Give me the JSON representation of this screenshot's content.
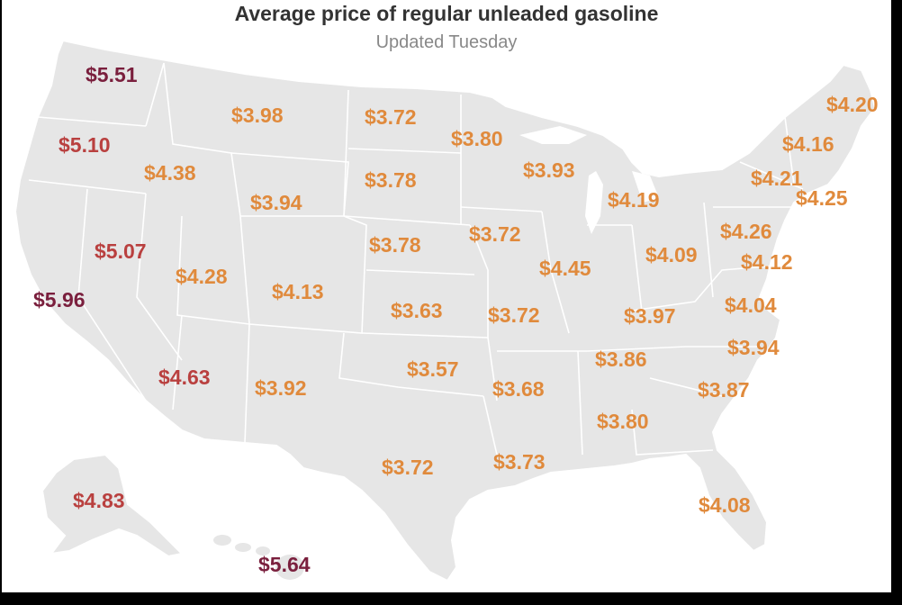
{
  "header": {
    "title": "Average price of regular unleaded gasoline",
    "subtitle": "Updated Tuesday"
  },
  "colors": {
    "background": "#ffffff",
    "land": "#e6e6e6",
    "border": "#ffffff",
    "tier_high": "#7a1f3d",
    "tier_mid": "#b9403f",
    "tier_low": "#e08a3c"
  },
  "states": [
    {
      "code": "WA",
      "price": "$5.51",
      "tier": "high"
    },
    {
      "code": "OR",
      "price": "$5.10",
      "tier": "mid"
    },
    {
      "code": "CA",
      "price": "$5.96",
      "tier": "high"
    },
    {
      "code": "NV",
      "price": "$5.07",
      "tier": "mid"
    },
    {
      "code": "ID",
      "price": "$4.38",
      "tier": "low"
    },
    {
      "code": "MT",
      "price": "$3.98",
      "tier": "low"
    },
    {
      "code": "WY",
      "price": "$3.94",
      "tier": "low"
    },
    {
      "code": "UT",
      "price": "$4.28",
      "tier": "low"
    },
    {
      "code": "CO",
      "price": "$4.13",
      "tier": "low"
    },
    {
      "code": "AZ",
      "price": "$4.63",
      "tier": "mid"
    },
    {
      "code": "NM",
      "price": "$3.92",
      "tier": "low"
    },
    {
      "code": "ND",
      "price": "$3.72",
      "tier": "low"
    },
    {
      "code": "SD",
      "price": "$3.78",
      "tier": "low"
    },
    {
      "code": "NE",
      "price": "$3.78",
      "tier": "low"
    },
    {
      "code": "KS",
      "price": "$3.63",
      "tier": "low"
    },
    {
      "code": "OK",
      "price": "$3.57",
      "tier": "low"
    },
    {
      "code": "TX",
      "price": "$3.72",
      "tier": "low"
    },
    {
      "code": "MN",
      "price": "$3.80",
      "tier": "low"
    },
    {
      "code": "IA",
      "price": "$3.72",
      "tier": "low"
    },
    {
      "code": "MO",
      "price": "$3.72",
      "tier": "low"
    },
    {
      "code": "AR",
      "price": "$3.68",
      "tier": "low"
    },
    {
      "code": "LA",
      "price": "$3.73",
      "tier": "low"
    },
    {
      "code": "WI",
      "price": "$3.93",
      "tier": "low"
    },
    {
      "code": "IL",
      "price": "$4.45",
      "tier": "low"
    },
    {
      "code": "MI",
      "price": "$4.19",
      "tier": "low"
    },
    {
      "code": "IN",
      "price": "$4.09",
      "tier": "low"
    },
    {
      "code": "KY",
      "price": "$3.97",
      "tier": "low"
    },
    {
      "code": "TN",
      "price": "$3.86",
      "tier": "low"
    },
    {
      "code": "MS",
      "price": "$3.80",
      "tier": "low"
    },
    {
      "code": "PA",
      "price": "$4.26",
      "tier": "low"
    },
    {
      "code": "NJ",
      "price": "$4.12",
      "tier": "low"
    },
    {
      "code": "VA",
      "price": "$4.04",
      "tier": "low"
    },
    {
      "code": "NC",
      "price": "$3.94",
      "tier": "low"
    },
    {
      "code": "SC",
      "price": "$3.87",
      "tier": "low"
    },
    {
      "code": "FL",
      "price": "$4.08",
      "tier": "low"
    },
    {
      "code": "ME",
      "price": "$4.20",
      "tier": "low"
    },
    {
      "code": "VT",
      "price": "$4.16",
      "tier": "low"
    },
    {
      "code": "NY",
      "price": "$4.21",
      "tier": "low"
    },
    {
      "code": "MA",
      "price": "$4.25",
      "tier": "low"
    },
    {
      "code": "AK",
      "price": "$4.83",
      "tier": "mid"
    },
    {
      "code": "HI",
      "price": "$5.64",
      "tier": "high"
    }
  ]
}
